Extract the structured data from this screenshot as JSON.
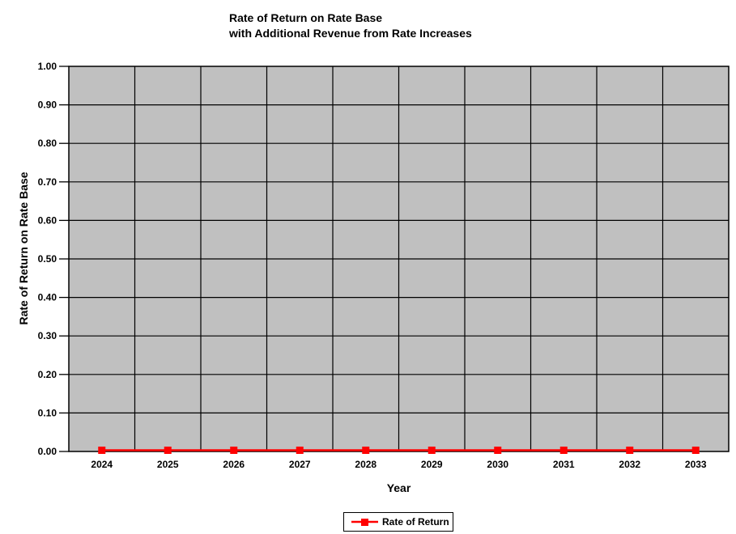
{
  "chart_data": {
    "type": "line",
    "title": "Rate of Return on Rate Base",
    "subtitle": "with Additional Revenue from Rate Increases",
    "xlabel": "Year",
    "ylabel": "Rate of Return on Rate Base",
    "categories": [
      "2024",
      "2025",
      "2026",
      "2027",
      "2028",
      "2029",
      "2030",
      "2031",
      "2032",
      "2033"
    ],
    "series": [
      {
        "name": "Rate of Return",
        "color": "#FF0000",
        "marker": "square",
        "values": [
          0.0,
          0.0,
          0.0,
          0.0,
          0.0,
          0.0,
          0.0,
          0.0,
          0.0,
          0.0
        ]
      }
    ],
    "ylim": [
      0.0,
      1.0
    ],
    "ytick_step": 0.1,
    "ytick_labels": [
      "0.00",
      "0.10",
      "0.20",
      "0.30",
      "0.40",
      "0.50",
      "0.60",
      "0.70",
      "0.80",
      "0.90",
      "1.00"
    ],
    "grid": true,
    "grid_color": "#000000",
    "axis_color": "#000000",
    "plot_bg": "#C0C0C0",
    "page_bg": "#FFFFFF",
    "legend_position": "bottom"
  }
}
